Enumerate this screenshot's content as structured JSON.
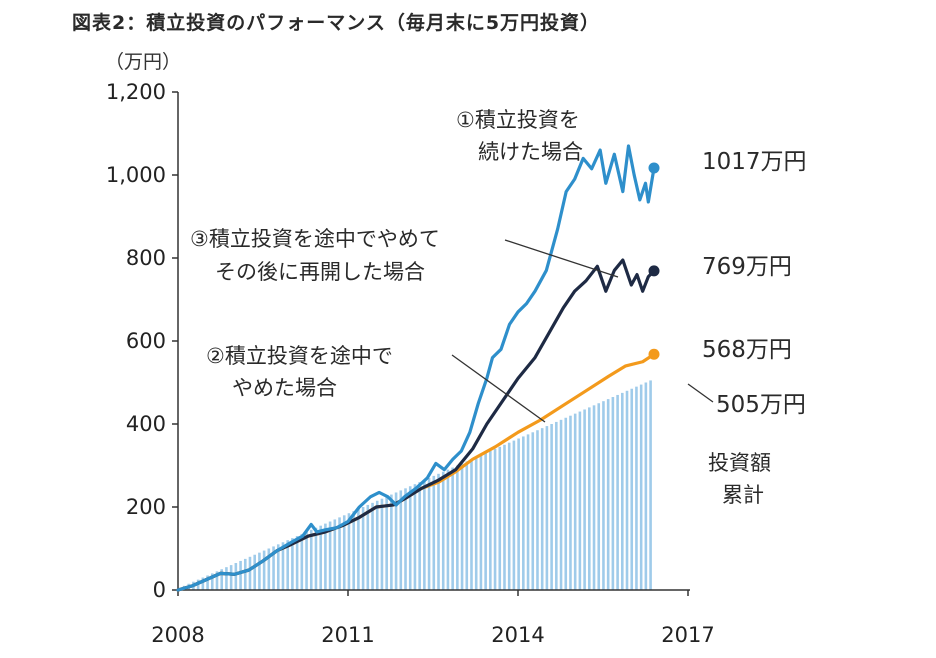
{
  "title": "図表2：積立投資のパフォーマンス（毎月末に5万円投資）",
  "chart_data": {
    "type": "line",
    "title": "図表2：積立投資のパフォーマンス（毎月末に5万円投資）",
    "ylabel": "（万円）",
    "ylim": [
      0,
      1200
    ],
    "yticks": [
      {
        "v": 0,
        "label": "0"
      },
      {
        "v": 200,
        "label": "200"
      },
      {
        "v": 400,
        "label": "400"
      },
      {
        "v": 600,
        "label": "600"
      },
      {
        "v": 800,
        "label": "800"
      },
      {
        "v": 1000,
        "label": "1,000"
      },
      {
        "v": 1200,
        "label": "1,200"
      }
    ],
    "xlim": [
      2008.0,
      2017.0
    ],
    "xticks": [
      {
        "v": 2008,
        "label": "2008"
      },
      {
        "v": 2011,
        "label": "2011"
      },
      {
        "v": 2014,
        "label": "2014"
      },
      {
        "v": 2017,
        "label": "2017"
      }
    ],
    "bars": {
      "label_lines": [
        "投資額",
        "累計"
      ],
      "end_label": "505万円",
      "color": "#9fcbea",
      "x_start": 2008.0,
      "x_end": 2016.4,
      "start_value": 0,
      "end_value": 505,
      "count": 101
    },
    "series": [
      {
        "label_lines": [
          "①積立投資を",
          "続けた場合"
        ],
        "end_label": "1017万円",
        "color": "#2e8fcb",
        "points": [
          [
            2008.0,
            0
          ],
          [
            2008.25,
            10
          ],
          [
            2008.5,
            25
          ],
          [
            2008.75,
            40
          ],
          [
            2009.0,
            38
          ],
          [
            2009.25,
            48
          ],
          [
            2009.5,
            70
          ],
          [
            2009.75,
            95
          ],
          [
            2010.0,
            115
          ],
          [
            2010.2,
            130
          ],
          [
            2010.35,
            158
          ],
          [
            2010.45,
            140
          ],
          [
            2010.6,
            145
          ],
          [
            2010.8,
            150
          ],
          [
            2011.0,
            165
          ],
          [
            2011.2,
            200
          ],
          [
            2011.4,
            225
          ],
          [
            2011.55,
            235
          ],
          [
            2011.7,
            225
          ],
          [
            2011.85,
            205
          ],
          [
            2012.0,
            225
          ],
          [
            2012.2,
            245
          ],
          [
            2012.4,
            270
          ],
          [
            2012.55,
            305
          ],
          [
            2012.7,
            290
          ],
          [
            2012.85,
            315
          ],
          [
            2013.0,
            335
          ],
          [
            2013.15,
            380
          ],
          [
            2013.3,
            450
          ],
          [
            2013.45,
            510
          ],
          [
            2013.55,
            560
          ],
          [
            2013.7,
            580
          ],
          [
            2013.85,
            640
          ],
          [
            2014.0,
            670
          ],
          [
            2014.15,
            690
          ],
          [
            2014.3,
            720
          ],
          [
            2014.5,
            770
          ],
          [
            2014.7,
            870
          ],
          [
            2014.85,
            960
          ],
          [
            2015.0,
            990
          ],
          [
            2015.15,
            1040
          ],
          [
            2015.3,
            1015
          ],
          [
            2015.45,
            1060
          ],
          [
            2015.55,
            980
          ],
          [
            2015.7,
            1050
          ],
          [
            2015.85,
            960
          ],
          [
            2015.95,
            1070
          ],
          [
            2016.05,
            1000
          ],
          [
            2016.15,
            940
          ],
          [
            2016.25,
            980
          ],
          [
            2016.3,
            935
          ],
          [
            2016.4,
            1017
          ]
        ]
      },
      {
        "label_lines": [
          "③積立投資を途中でやめて",
          "その後に再開した場合"
        ],
        "end_label": "769万円",
        "color": "#1e2a44",
        "points": [
          [
            2008.0,
            0
          ],
          [
            2008.25,
            10
          ],
          [
            2008.5,
            25
          ],
          [
            2008.75,
            40
          ],
          [
            2009.0,
            38
          ],
          [
            2009.25,
            48
          ],
          [
            2009.5,
            70
          ],
          [
            2009.75,
            95
          ],
          [
            2010.0,
            110
          ],
          [
            2010.3,
            130
          ],
          [
            2010.6,
            140
          ],
          [
            2010.9,
            155
          ],
          [
            2011.2,
            175
          ],
          [
            2011.5,
            200
          ],
          [
            2011.8,
            205
          ],
          [
            2012.0,
            220
          ],
          [
            2012.3,
            245
          ],
          [
            2012.6,
            265
          ],
          [
            2012.9,
            290
          ],
          [
            2013.2,
            340
          ],
          [
            2013.45,
            400
          ],
          [
            2013.7,
            450
          ],
          [
            2014.0,
            510
          ],
          [
            2014.3,
            560
          ],
          [
            2014.55,
            620
          ],
          [
            2014.8,
            680
          ],
          [
            2015.0,
            720
          ],
          [
            2015.2,
            745
          ],
          [
            2015.4,
            780
          ],
          [
            2015.55,
            720
          ],
          [
            2015.7,
            770
          ],
          [
            2015.85,
            795
          ],
          [
            2016.0,
            735
          ],
          [
            2016.1,
            760
          ],
          [
            2016.2,
            720
          ],
          [
            2016.3,
            755
          ],
          [
            2016.4,
            769
          ]
        ]
      },
      {
        "label_lines": [
          "②積立投資を途中で",
          "やめた場合"
        ],
        "end_label": "568万円",
        "color": "#f39a1c",
        "points": [
          [
            2008.0,
            0
          ],
          [
            2008.25,
            10
          ],
          [
            2008.5,
            25
          ],
          [
            2008.75,
            40
          ],
          [
            2009.0,
            38
          ],
          [
            2009.25,
            48
          ],
          [
            2009.5,
            70
          ],
          [
            2009.75,
            95
          ],
          [
            2010.0,
            110
          ],
          [
            2010.3,
            130
          ],
          [
            2010.6,
            140
          ],
          [
            2010.9,
            155
          ],
          [
            2011.2,
            175
          ],
          [
            2011.5,
            200
          ],
          [
            2011.8,
            205
          ],
          [
            2012.0,
            220
          ],
          [
            2012.3,
            245
          ],
          [
            2012.6,
            260
          ],
          [
            2012.9,
            285
          ],
          [
            2013.2,
            315
          ],
          [
            2013.6,
            345
          ],
          [
            2014.0,
            380
          ],
          [
            2014.4,
            410
          ],
          [
            2014.8,
            445
          ],
          [
            2015.2,
            480
          ],
          [
            2015.6,
            515
          ],
          [
            2015.9,
            540
          ],
          [
            2016.2,
            550
          ],
          [
            2016.4,
            568
          ]
        ]
      }
    ],
    "grid": false,
    "legend": "none"
  }
}
